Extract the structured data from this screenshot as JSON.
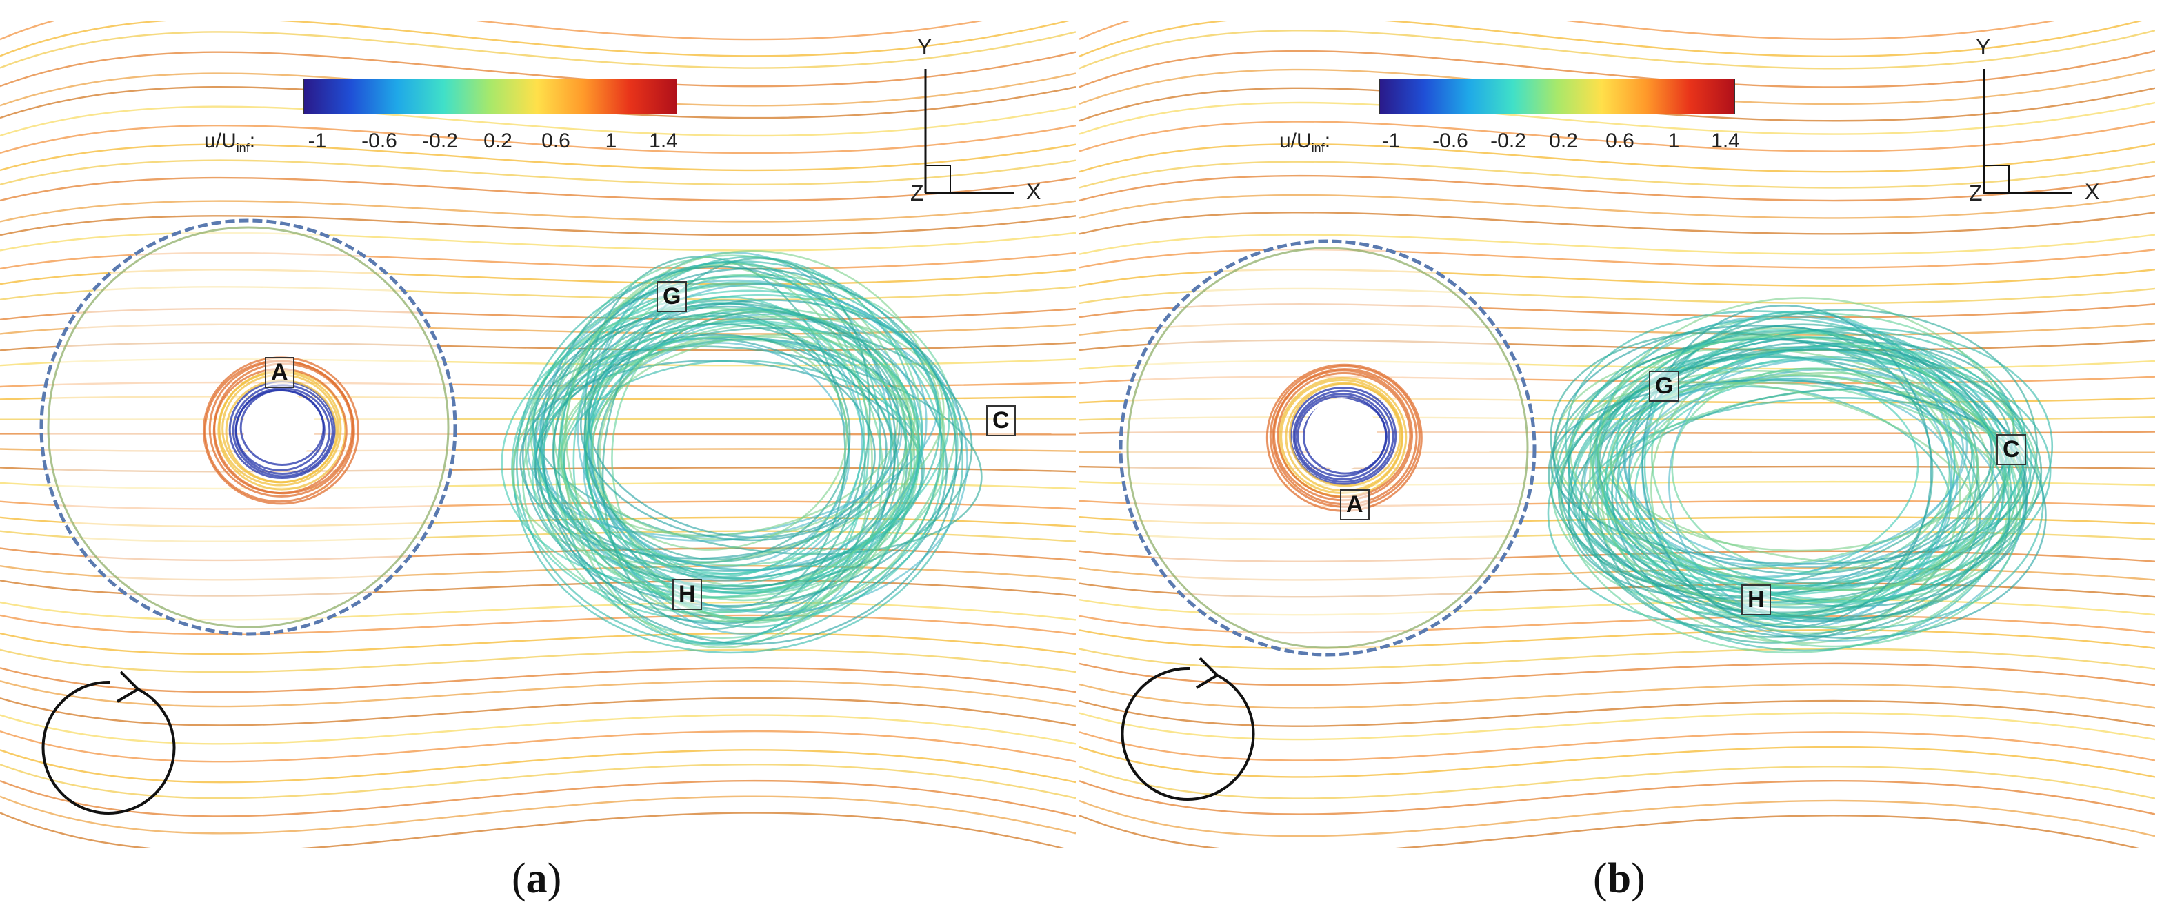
{
  "colorbar": {
    "label": "u/U",
    "label_sub": "inf",
    "label_suffix": ":",
    "ticks": [
      "-1",
      "-0.6",
      "-0.2",
      "0.2",
      "0.6",
      "1",
      "1.4"
    ],
    "colors": [
      "#2a1a8a",
      "#1f4fd6",
      "#1fa8e8",
      "#40e0c8",
      "#a8e86a",
      "#ffe04a",
      "#ff9a2a",
      "#e8331a",
      "#b0101a"
    ]
  },
  "axes": {
    "y": "Y",
    "x": "X",
    "z": "Z"
  },
  "panels": [
    {
      "id": "a",
      "caption_letter": "a",
      "labels": {
        "A": "A",
        "G": "G",
        "C": "C",
        "H": "H"
      },
      "rotation_icon": "counterclockwise-rotation-arrow"
    },
    {
      "id": "b",
      "caption_letter": "b",
      "labels": {
        "A": "A",
        "G": "G",
        "C": "C",
        "H": "H"
      },
      "rotation_icon": "counterclockwise-rotation-arrow"
    }
  ]
}
